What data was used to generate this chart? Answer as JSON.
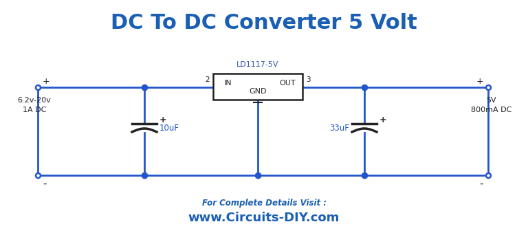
{
  "title": "DC To DC Converter 5 Volt",
  "title_color": "#1a5fb4",
  "title_fontsize": 22,
  "bg_color": "#ffffff",
  "circuit_color": "#2255cc",
  "line_width": 2.0,
  "ic_label": "LD1117-5V",
  "ic_label_color": "#3355aa",
  "ic_in_label": "IN",
  "ic_out_label": "OUT",
  "ic_gnd_label": "GND",
  "ic_pin2": "2",
  "ic_pin3": "3",
  "cap1_label": "10uF",
  "cap2_label": "33uF",
  "cap_label_color": "#2255cc",
  "input_label1": "6.2v-20v",
  "input_label2": "1A DC",
  "output_label1": "5V",
  "output_label2": "800mA DC",
  "footer_line1": "For Complete Details Visit :",
  "footer_line2": "www.Circuits-DIY.com",
  "footer_color": "#1a5fb4"
}
